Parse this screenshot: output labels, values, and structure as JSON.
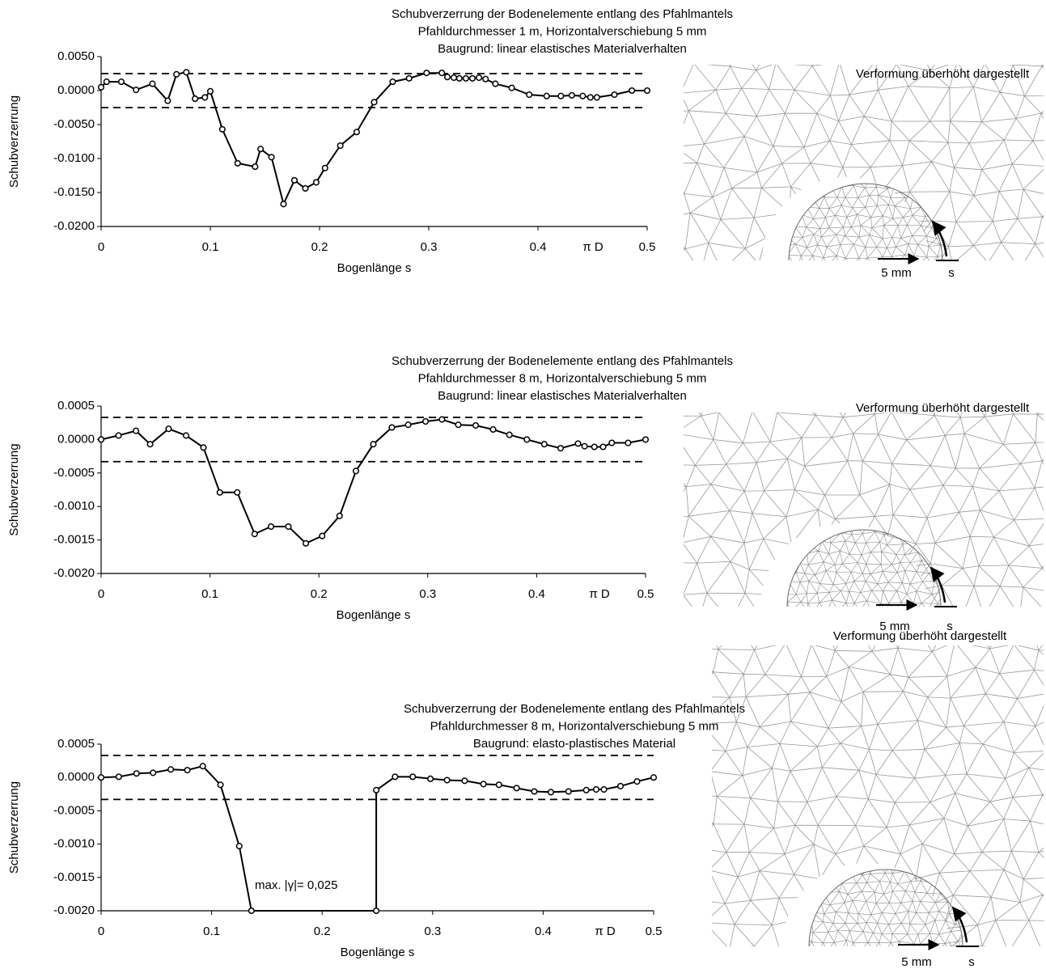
{
  "chart_data": [
    {
      "type": "line",
      "title": [
        "Schubverzerrung der Bodenelemente entlang des Pfahlmantels",
        "Pfahldurchmesser 1 m, Horizontalverschiebung 5 mm",
        "Baugrund: linear elastisches Materialverhalten"
      ],
      "y_label": "Schubverzerrung",
      "x_label": "Bogenlänge s",
      "x_unit_label": "π D",
      "color": "#000000",
      "x": [
        0,
        0.005,
        0.0185,
        0.032,
        0.047,
        0.061,
        0.069,
        0.078,
        0.086,
        0.095,
        0.1,
        0.111,
        0.125,
        0.141,
        0.146,
        0.156,
        0.167,
        0.177,
        0.187,
        0.197,
        0.205,
        0.219,
        0.234,
        0.25,
        0.267,
        0.282,
        0.298,
        0.312,
        0.317,
        0.323,
        0.328,
        0.334,
        0.34,
        0.346,
        0.352,
        0.361,
        0.376,
        0.392,
        0.408,
        0.421,
        0.431,
        0.441,
        0.448,
        0.454,
        0.47,
        0.486,
        0.5
      ],
      "values": [
        0.0005,
        0.0013,
        0.0013,
        0.0001,
        0.001,
        -0.0015,
        0.0024,
        0.0027,
        -0.0012,
        -0.001,
        -0.0001,
        -0.0057,
        -0.0107,
        -0.0112,
        -0.0086,
        -0.0098,
        -0.0167,
        -0.0132,
        -0.0144,
        -0.0135,
        -0.0114,
        -0.0081,
        -0.0061,
        -0.0017,
        0.0013,
        0.0018,
        0.0026,
        0.0026,
        0.002,
        0.0019,
        0.0018,
        0.0018,
        0.0018,
        0.0019,
        0.0017,
        0.001,
        0.0004,
        -0.0006,
        -0.0008,
        -0.0008,
        -0.0007,
        -0.0008,
        -0.001,
        -0.001,
        -0.0006,
        0,
        0
      ],
      "reference_lines": [
        0.0025,
        -0.0025
      ],
      "xlim": [
        0,
        0.5
      ],
      "xticks": [
        0,
        0.1,
        0.2,
        0.3,
        0.4,
        0.5
      ],
      "ylim": [
        -0.02,
        0.005
      ],
      "yticks": [
        {
          "value": 0.005,
          "label": "0.0050"
        },
        {
          "value": 0,
          "label": "0.0000"
        },
        {
          "value": -0.005,
          "label": "-0.0050"
        },
        {
          "value": -0.01,
          "label": "-0.0100"
        },
        {
          "value": -0.015,
          "label": "-0.0150"
        },
        {
          "value": -0.02,
          "label": "-0.0200"
        }
      ],
      "panel": {
        "caption": "Verformung überhöht dargestellt",
        "scale_label": "5 mm",
        "arc_label": "s"
      }
    },
    {
      "type": "line",
      "title": [
        "Schubverzerrung der Bodenelemente entlang des Pfahlmantels",
        "Pfahldurchmesser 8 m, Horizontalverschiebung 5 mm",
        "Baugrund: linear elastisches Materialverhalten"
      ],
      "y_label": "Schubverzerrung",
      "x_label": "Bogenlänge s",
      "x_unit_label": "π D",
      "color": "#000000",
      "x": [
        0,
        0.016,
        0.032,
        0.045,
        0.062,
        0.078,
        0.094,
        0.109,
        0.125,
        0.141,
        0.156,
        0.172,
        0.188,
        0.203,
        0.219,
        0.234,
        0.25,
        0.267,
        0.282,
        0.298,
        0.313,
        0.328,
        0.344,
        0.36,
        0.375,
        0.391,
        0.407,
        0.422,
        0.438,
        0.444,
        0.453,
        0.461,
        0.469,
        0.484,
        0.5
      ],
      "values": [
        0,
        6e-05,
        0.00013,
        -7e-05,
        0.00016,
        6e-05,
        -0.00012,
        -0.00079,
        -0.00079,
        -0.00141,
        -0.0013,
        -0.0013,
        -0.00155,
        -0.00144,
        -0.00114,
        -0.00047,
        -7e-05,
        0.00018,
        0.00022,
        0.00027,
        0.0003,
        0.00022,
        0.00021,
        0.00015,
        7e-05,
        0,
        -7e-05,
        -0.00013,
        -6e-05,
        -0.0001,
        -0.00011,
        -0.00011,
        -5e-05,
        -5e-05,
        0
      ],
      "reference_lines": [
        0.00033,
        -0.00033
      ],
      "xlim": [
        0,
        0.5
      ],
      "xticks": [
        0,
        0.1,
        0.2,
        0.3,
        0.4,
        0.5
      ],
      "ylim": [
        -0.002,
        0.0005
      ],
      "yticks": [
        {
          "value": 0.0005,
          "label": "0.0005"
        },
        {
          "value": 0,
          "label": "0.0000"
        },
        {
          "value": -0.0005,
          "label": "-0.0005"
        },
        {
          "value": -0.001,
          "label": "-0.0010"
        },
        {
          "value": -0.0015,
          "label": "-0.0015"
        },
        {
          "value": -0.002,
          "label": "-0.0020"
        }
      ],
      "panel": {
        "caption": "Verformung überhöht dargestellt",
        "scale_label": "5 mm",
        "arc_label": "s"
      }
    },
    {
      "type": "line",
      "title": [
        "Schubverzerrung der Bodenelemente entlang des Pfahlmantels",
        "Pfahldurchmesser 8 m, Horizontalverschiebung 5 mm",
        "Baugrund: elasto-plastisches Material"
      ],
      "y_label": "Schubverzerrung",
      "x_label": "Bogenlänge s",
      "x_unit_label": "π D",
      "annotation": "max. |γ|= 0,025",
      "color": "#000000",
      "x": [
        0,
        0.016,
        0.032,
        0.047,
        0.063,
        0.078,
        0.092,
        0.108,
        0.125,
        0.136,
        0.249,
        0.249,
        0.266,
        0.282,
        0.298,
        0.313,
        0.329,
        0.346,
        0.36,
        0.376,
        0.392,
        0.407,
        0.423,
        0.439,
        0.448,
        0.455,
        0.47,
        0.485,
        0.5
      ],
      "values": [
        0,
        1e-05,
        6e-05,
        7e-05,
        0.00012,
        0.00011,
        0.00017,
        -0.00011,
        -0.00103,
        -0.002,
        -0.002,
        -0.00019,
        1e-05,
        1e-05,
        -2e-05,
        -4e-05,
        -5e-05,
        -0.0001,
        -0.00011,
        -0.00016,
        -0.00021,
        -0.00022,
        -0.00021,
        -0.00019,
        -0.00018,
        -0.00018,
        -0.00013,
        -6e-05,
        0
      ],
      "reference_lines": [
        0.00033,
        -0.00033
      ],
      "xlim": [
        0,
        0.5
      ],
      "xticks": [
        0,
        0.1,
        0.2,
        0.3,
        0.4,
        0.5
      ],
      "ylim": [
        -0.002,
        0.0005
      ],
      "yticks": [
        {
          "value": 0.0005,
          "label": "0.0005"
        },
        {
          "value": 0,
          "label": "0.0000"
        },
        {
          "value": -0.0005,
          "label": "-0.0005"
        },
        {
          "value": -0.001,
          "label": "-0.0010"
        },
        {
          "value": -0.0015,
          "label": "-0.0015"
        },
        {
          "value": -0.002,
          "label": "-0.0020"
        }
      ],
      "panel": {
        "caption": "Verformung überhöht dargestellt",
        "scale_label": "5 mm",
        "arc_label": "s"
      }
    }
  ]
}
